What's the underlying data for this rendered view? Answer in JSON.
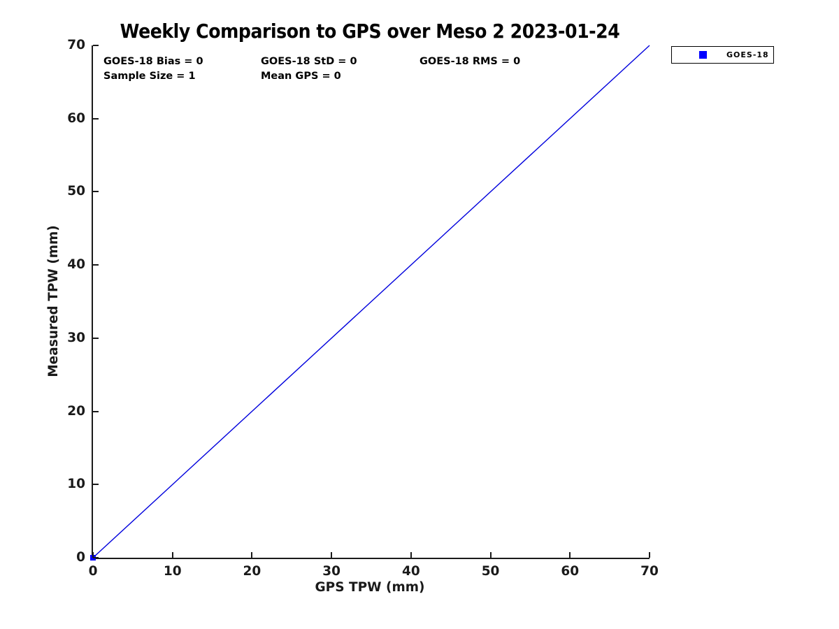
{
  "chart_data": {
    "type": "scatter",
    "title": "Weekly Comparison to GPS over Meso 2 2023-01-24",
    "xlabel": "GPS TPW (mm)",
    "ylabel": "Measured TPW (mm)",
    "xlim": [
      0,
      70
    ],
    "ylim": [
      0,
      70
    ],
    "xticks": [
      0,
      10,
      20,
      30,
      40,
      50,
      60,
      70
    ],
    "yticks": [
      0,
      10,
      20,
      30,
      40,
      50,
      60,
      70
    ],
    "grid": false,
    "axis_color": "#1a1a1a",
    "annotations": [
      {
        "text": "GOES-18 Bias = 0"
      },
      {
        "text": "GOES-18 StD = 0"
      },
      {
        "text": "GOES-18 RMS = 0"
      },
      {
        "text": "Sample Size = 1"
      },
      {
        "text": "Mean GPS = 0"
      }
    ],
    "stats": {
      "bias": 0,
      "std": 0,
      "rms": 0,
      "sample_size": 1,
      "mean_gps": 0
    },
    "legend": {
      "position": "outside-top-right",
      "entries": [
        {
          "label": "GOES-18",
          "marker": "square",
          "color": "#0000ff"
        }
      ]
    },
    "series": [
      {
        "name": "identity-line",
        "type": "line",
        "color": "#0000dd",
        "width": 1.4,
        "points": [
          {
            "x": 0,
            "y": 0
          },
          {
            "x": 70,
            "y": 70
          }
        ]
      },
      {
        "name": "GOES-18",
        "type": "scatter",
        "marker": "square",
        "marker_size": 8,
        "color": "#0000ff",
        "points": [
          {
            "x": 0,
            "y": 0
          }
        ]
      }
    ]
  }
}
